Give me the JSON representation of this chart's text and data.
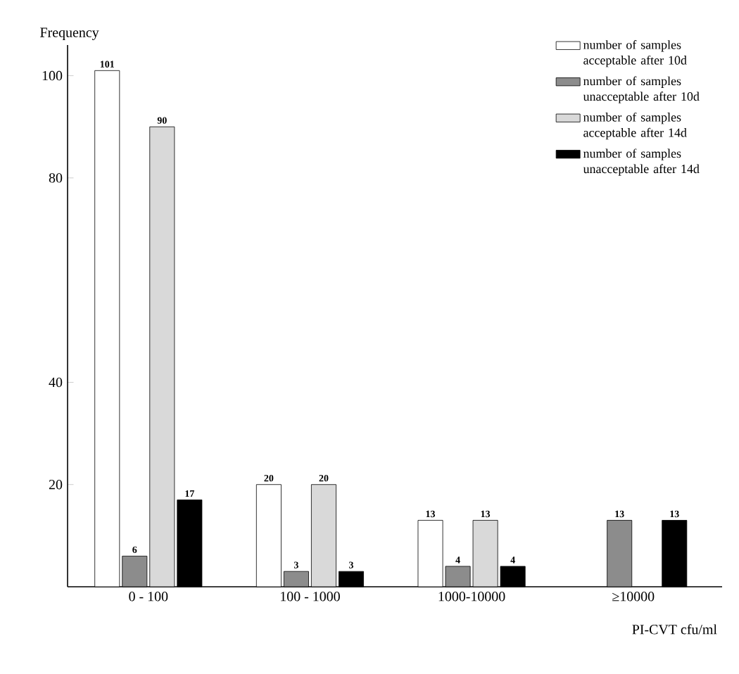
{
  "chart_data": {
    "type": "bar",
    "xlabel": "PI-CVT cfu/ml",
    "ylabel": "Frequency",
    "categories": [
      "0 - 100",
      "100 - 1000",
      "1000-10000",
      "≥10000"
    ],
    "series": [
      {
        "name": "number of samples acceptable after 10d",
        "color": "#ffffff",
        "values": [
          101,
          20,
          13,
          null
        ]
      },
      {
        "name": "number of samples unacceptable after 10d",
        "color": "#8c8c8c",
        "values": [
          6,
          3,
          4,
          13
        ]
      },
      {
        "name": "number of samples acceptable after 14d",
        "color": "#d9d9d9",
        "values": [
          90,
          20,
          13,
          null
        ]
      },
      {
        "name": "number of samples unacceptable after 14d",
        "color": "#000000",
        "values": [
          17,
          3,
          4,
          13
        ]
      }
    ],
    "ylim": [
      0,
      106
    ],
    "yticks": [
      20,
      40,
      80,
      100
    ],
    "data_labels": true,
    "legend": "top right",
    "grid": false
  }
}
